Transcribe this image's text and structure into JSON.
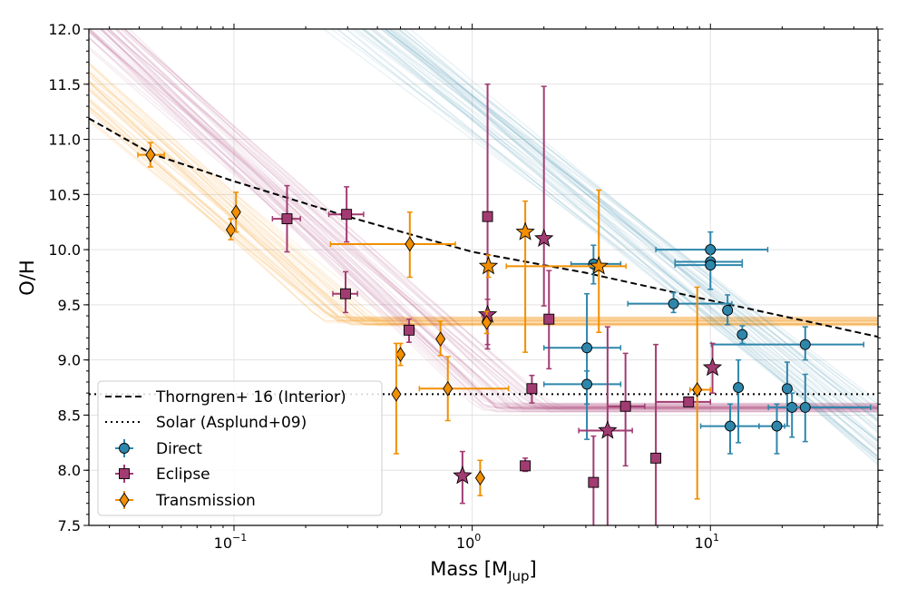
{
  "chart_data": {
    "type": "scatter",
    "title": "",
    "xlabel": {
      "main": "Mass [M",
      "sub": "Jup",
      "end": "]"
    },
    "ylabel": "O/H",
    "x_scale": "log",
    "xlim": [
      0.0246,
      50.5
    ],
    "ylim": [
      7.5,
      12.0
    ],
    "grid": true,
    "legend_placement": "lower-left",
    "x_ticks": [
      {
        "value": 0.1,
        "base": "10",
        "exp": "−1"
      },
      {
        "value": 1,
        "base": "10",
        "exp": "0"
      },
      {
        "value": 10,
        "base": "10",
        "exp": "1"
      }
    ],
    "y_ticks": [
      "7.5",
      "8.0",
      "8.5",
      "9.0",
      "9.5",
      "10.0",
      "10.5",
      "11.0",
      "11.5",
      "12.0"
    ],
    "colors": {
      "direct": "#2E86AB",
      "eclipse": "#A23B72",
      "transmission": "#F18F01"
    },
    "reference_lines": [
      {
        "name": "Thorngren+ 16 (Interior)",
        "style": "dashed",
        "points": [
          [
            0.0246,
            11.19
          ],
          [
            0.045,
            10.87
          ],
          [
            0.1,
            10.62
          ],
          [
            0.3,
            10.3
          ],
          [
            1,
            9.98
          ],
          [
            3,
            9.79
          ],
          [
            10,
            9.54
          ],
          [
            50.5,
            9.21
          ]
        ]
      },
      {
        "name": "Solar (Asplund+09)",
        "style": "dotted",
        "value": 8.69
      }
    ],
    "model_bands": [
      {
        "series": "transmission",
        "anchor": [
          0.1,
          10.3
        ],
        "slope_per_dex": -1.9,
        "floor": 9.35
      },
      {
        "series": "eclipse",
        "anchor": [
          0.1,
          10.9
        ],
        "slope_per_dex": -1.96,
        "floor": 8.57
      },
      {
        "series": "direct",
        "anchor": [
          10,
          9.55
        ],
        "slope_per_dex": -1.75,
        "floor": 7.5
      }
    ],
    "point_fields": [
      "mass",
      "oh",
      "mass_lo",
      "mass_hi",
      "oh_lo",
      "oh_hi",
      "marker"
    ],
    "series": [
      {
        "name": "Direct",
        "key": "direct",
        "marker": "circle",
        "points": [
          [
            3.23,
            9.87,
            2.6,
            4.2,
            9.69,
            10.04,
            "o"
          ],
          [
            7.0,
            9.51,
            4.5,
            12.3,
            9.43,
            9.61,
            "o"
          ],
          [
            10.0,
            10.0,
            5.9,
            17.4,
            9.85,
            10.16,
            "o"
          ],
          [
            10.0,
            9.89,
            7.1,
            13.6,
            9.86,
            9.92,
            "o"
          ],
          [
            10.0,
            9.86,
            7.1,
            13.6,
            9.64,
            10.0,
            "o"
          ],
          [
            11.8,
            9.45,
            11.5,
            12.1,
            9.32,
            9.59,
            "o"
          ],
          [
            13.6,
            9.23,
            13.3,
            13.9,
            9.15,
            9.31,
            "o"
          ],
          [
            25,
            9.14,
            10.1,
            44,
            9.0,
            9.3,
            "o"
          ],
          [
            3.03,
            9.11,
            2.0,
            4.2,
            8.6,
            9.6,
            "o"
          ],
          [
            3.03,
            8.78,
            2.0,
            4.2,
            8.28,
            8.9,
            "o"
          ],
          [
            13.1,
            8.75,
            13.0,
            13.2,
            8.25,
            9.0,
            "o"
          ],
          [
            12.1,
            8.4,
            9.1,
            16.0,
            8.15,
            8.6,
            "o"
          ],
          [
            19,
            8.4,
            16.0,
            20.5,
            8.15,
            8.6,
            "o"
          ],
          [
            21,
            8.74,
            20.7,
            21.3,
            8.4,
            8.98,
            "o"
          ],
          [
            22,
            8.57,
            21.8,
            22.2,
            8.3,
            8.7,
            "o"
          ],
          [
            25,
            8.57,
            17.5,
            47,
            8.26,
            8.87,
            "o"
          ]
        ]
      },
      {
        "name": "Eclipse",
        "key": "eclipse",
        "marker": "square",
        "points": [
          [
            0.167,
            10.28,
            0.145,
            0.19,
            9.98,
            10.58,
            "s"
          ],
          [
            0.297,
            10.32,
            0.25,
            0.35,
            10.07,
            10.57,
            "s"
          ],
          [
            0.294,
            9.6,
            0.26,
            0.33,
            9.43,
            9.8,
            "s"
          ],
          [
            0.543,
            9.27,
            0.52,
            0.57,
            9.16,
            9.37,
            "s"
          ],
          [
            1.16,
            10.3,
            1.12,
            1.2,
            9.14,
            11.5,
            "s"
          ],
          [
            1.78,
            8.74,
            1.74,
            1.82,
            8.61,
            8.86,
            "s"
          ],
          [
            1.67,
            8.04,
            1.64,
            1.7,
            7.99,
            8.11,
            "s"
          ],
          [
            2.1,
            9.37,
            2.03,
            2.17,
            8.92,
            9.81,
            "s"
          ],
          [
            3.23,
            7.89,
            3.16,
            3.3,
            7.3,
            8.31,
            "s"
          ],
          [
            4.4,
            8.58,
            3.7,
            5.3,
            8.04,
            9.06,
            "s"
          ],
          [
            5.9,
            8.11,
            5.8,
            6.0,
            7.3,
            9.14,
            "s"
          ],
          [
            8.1,
            8.62,
            5.9,
            10.0,
            8.58,
            8.66,
            "s"
          ],
          [
            1.16,
            9.41,
            1.1,
            1.2,
            9.1,
            9.55,
            "*"
          ],
          [
            2.0,
            10.1,
            1.97,
            2.03,
            9.49,
            11.48,
            "*"
          ],
          [
            0.91,
            7.95,
            0.9,
            0.92,
            7.7,
            8.17,
            "*"
          ],
          [
            3.7,
            8.36,
            2.8,
            4.7,
            7.3,
            9.3,
            "*"
          ],
          [
            10.2,
            8.93,
            10.1,
            10.3,
            8.7,
            9.15,
            "*"
          ]
        ]
      },
      {
        "name": "Transmission",
        "key": "transmission",
        "marker": "diamond",
        "points": [
          [
            0.0446,
            10.86,
            0.0395,
            0.051,
            10.75,
            10.97,
            "d"
          ],
          [
            0.097,
            10.18,
            0.095,
            0.099,
            10.09,
            10.28,
            "d"
          ],
          [
            0.102,
            10.34,
            0.1,
            0.104,
            10.16,
            10.52,
            "d"
          ],
          [
            0.547,
            10.05,
            0.254,
            0.85,
            9.75,
            10.34,
            "d"
          ],
          [
            0.5,
            9.05,
            0.49,
            0.51,
            8.95,
            9.15,
            "d"
          ],
          [
            0.736,
            9.19,
            0.72,
            0.75,
            9.04,
            9.35,
            "d"
          ],
          [
            0.48,
            8.69,
            0.47,
            0.49,
            8.15,
            9.15,
            "d"
          ],
          [
            0.79,
            8.74,
            0.6,
            1.42,
            8.45,
            9.03,
            "d"
          ],
          [
            1.08,
            7.93,
            1.06,
            1.1,
            7.77,
            8.09,
            "d"
          ],
          [
            1.15,
            9.34,
            1.12,
            1.18,
            9.24,
            9.44,
            "d"
          ],
          [
            8.8,
            8.73,
            8.2,
            10.0,
            7.74,
            9.66,
            "d"
          ],
          [
            1.17,
            9.85,
            1.15,
            1.19,
            9.75,
            9.95,
            "*"
          ],
          [
            1.67,
            10.16,
            1.64,
            1.7,
            9.07,
            10.44,
            "*"
          ],
          [
            3.4,
            9.85,
            1.39,
            4.42,
            9.25,
            10.54,
            "*"
          ]
        ]
      }
    ]
  }
}
